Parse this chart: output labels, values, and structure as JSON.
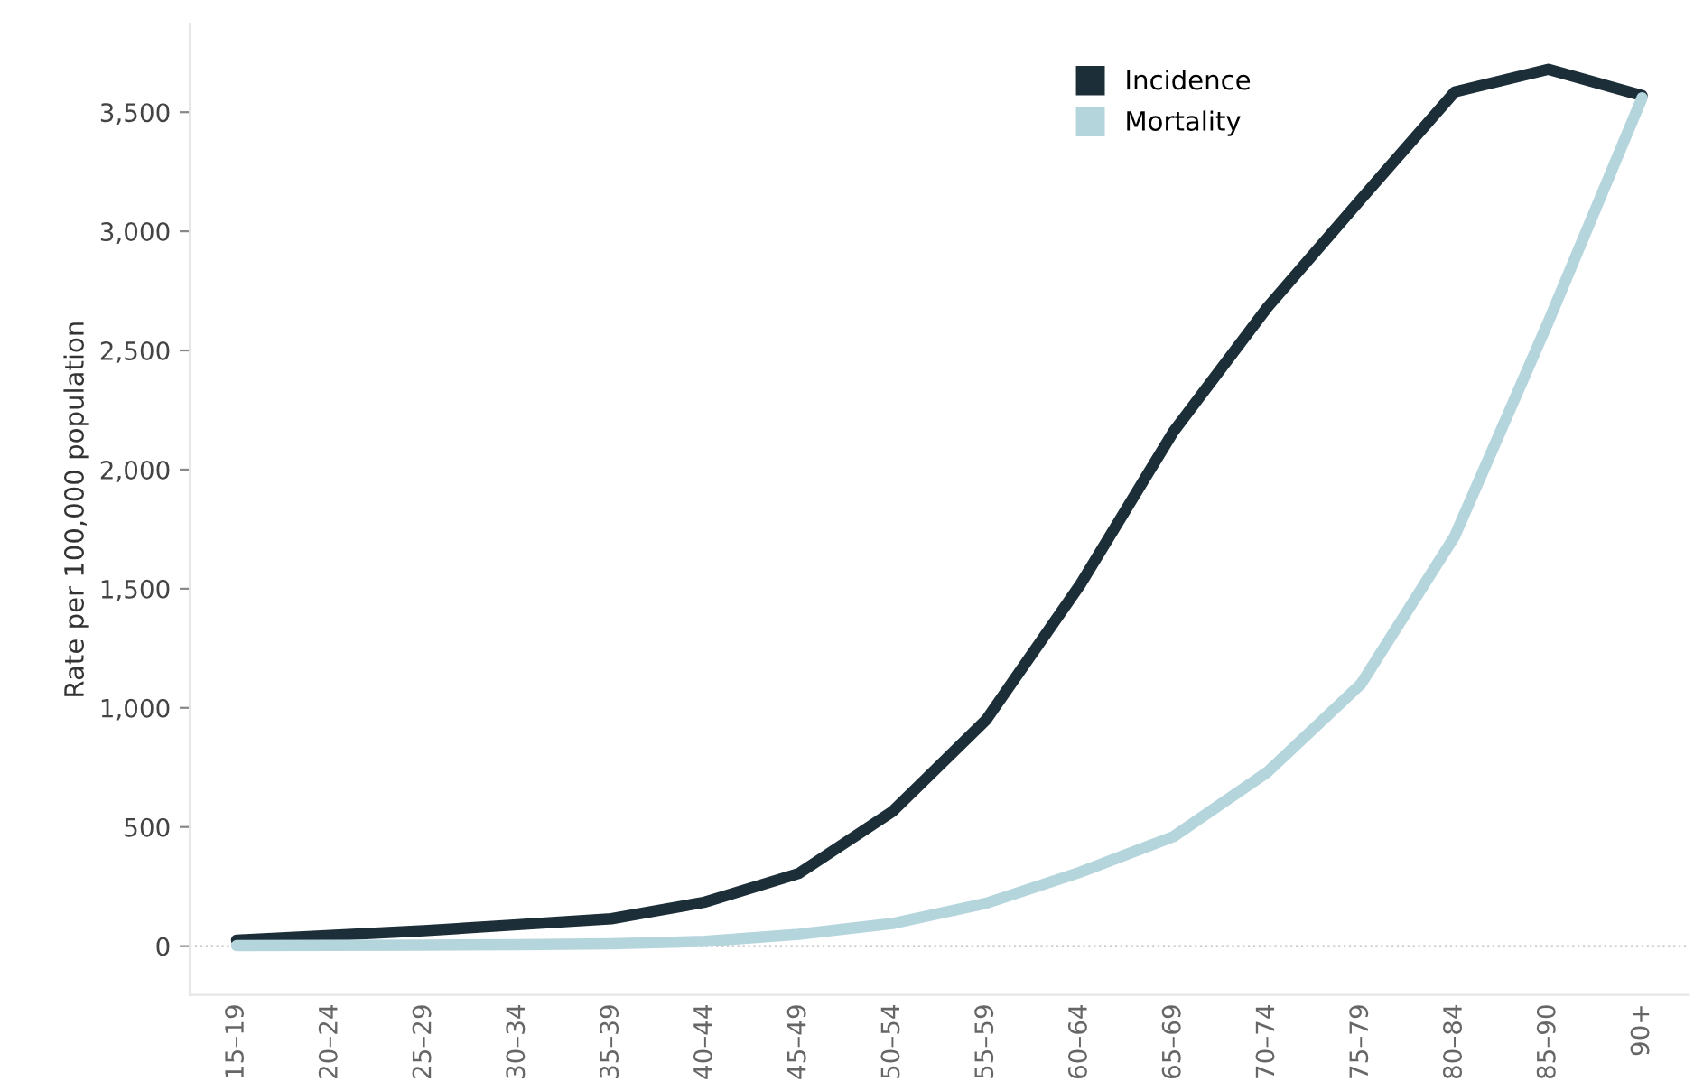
{
  "chart_data": {
    "type": "line",
    "ylabel": "Rate per 100,000 population",
    "categories": [
      "15–19",
      "20–24",
      "25–29",
      "30–34",
      "35–39",
      "40–44",
      "45–49",
      "50–54",
      "55–59",
      "60–64",
      "65–69",
      "70–74",
      "75–79",
      "80–84",
      "85–90",
      "90+"
    ],
    "series": [
      {
        "name": "Incidence",
        "color": "#1c2f38",
        "values": [
          25,
          45,
          65,
          90,
          115,
          185,
          305,
          565,
          950,
          1515,
          2160,
          2680,
          3135,
          3585,
          3680,
          3570
        ]
      },
      {
        "name": "Mortality",
        "color": "#b5d5dd",
        "values": [
          2,
          3,
          4,
          6,
          10,
          20,
          50,
          95,
          180,
          310,
          460,
          730,
          1100,
          1720,
          2620,
          3560
        ]
      }
    ],
    "ylim": [
      -205,
      3870
    ],
    "yticks": [
      {
        "value": 0,
        "label": "0"
      },
      {
        "value": 500,
        "label": "500"
      },
      {
        "value": 1000,
        "label": "1,000"
      },
      {
        "value": 1500,
        "label": "1,500"
      },
      {
        "value": 2000,
        "label": "2,000"
      },
      {
        "value": 2500,
        "label": "2,500"
      },
      {
        "value": 3000,
        "label": "3,000"
      },
      {
        "value": 3500,
        "label": "3,500"
      }
    ],
    "ref_lines": [
      {
        "axis": "y",
        "value": 0,
        "color": "#bbbbbb",
        "line_style": "dotted"
      }
    ],
    "grid": false,
    "legend": "top",
    "marker": "none",
    "line_style": "solid"
  }
}
